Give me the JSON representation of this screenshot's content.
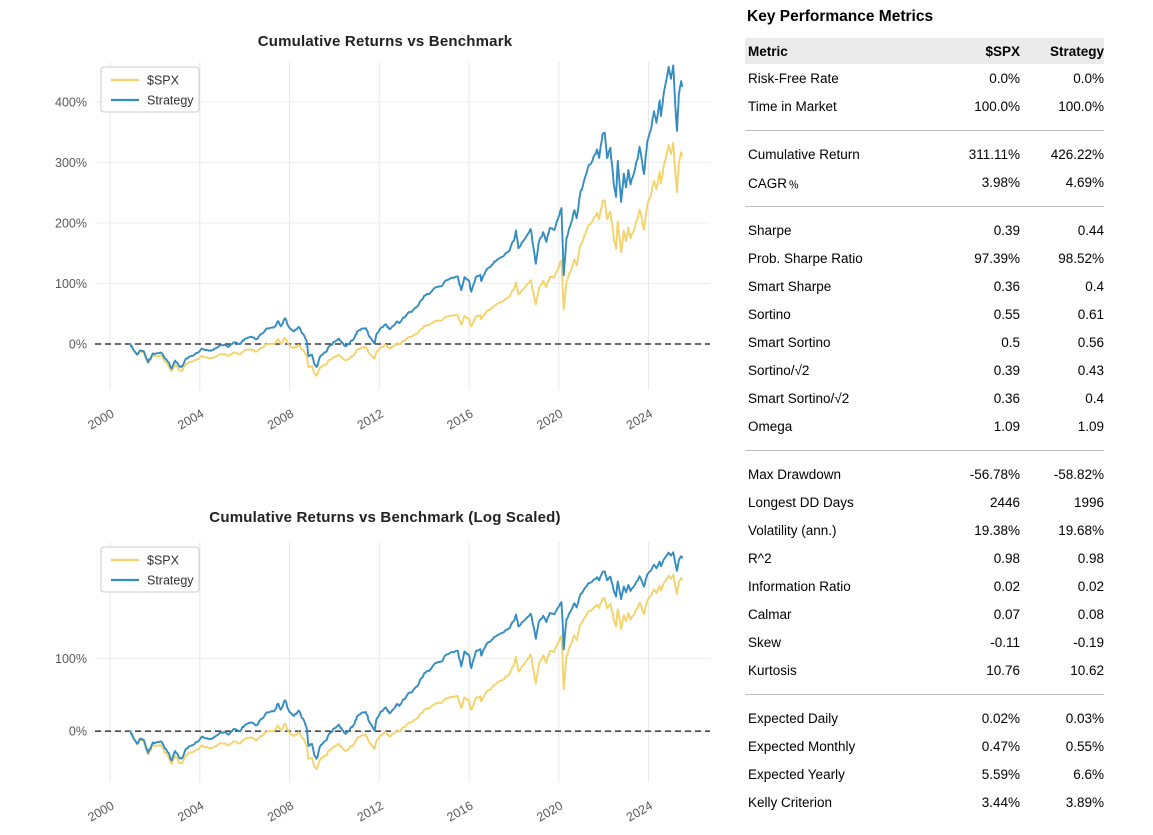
{
  "metrics": {
    "title": "Key Performance Metrics",
    "columns": [
      "Metric",
      "$SPX",
      "Strategy"
    ],
    "sections": [
      {
        "rows": [
          [
            "Risk-Free Rate",
            "0.0%",
            "0.0%"
          ],
          [
            "Time in Market",
            "100.0%",
            "100.0%"
          ]
        ]
      },
      {
        "rows": [
          [
            "Cumulative Return",
            "311.11%",
            "426.22%"
          ],
          [
            "CAGR﹪",
            "3.98%",
            "4.69%"
          ]
        ]
      },
      {
        "rows": [
          [
            "Sharpe",
            "0.39",
            "0.44"
          ],
          [
            "Prob. Sharpe Ratio",
            "97.39%",
            "98.52%"
          ],
          [
            "Smart Sharpe",
            "0.36",
            "0.4"
          ],
          [
            "Sortino",
            "0.55",
            "0.61"
          ],
          [
            "Smart Sortino",
            "0.5",
            "0.56"
          ],
          [
            "Sortino/√2",
            "0.39",
            "0.43"
          ],
          [
            "Smart Sortino/√2",
            "0.36",
            "0.4"
          ],
          [
            "Omega",
            "1.09",
            "1.09"
          ]
        ]
      },
      {
        "rows": [
          [
            "Max Drawdown",
            "-56.78%",
            "-58.82%"
          ],
          [
            "Longest DD Days",
            "2446",
            "1996"
          ],
          [
            "Volatility (ann.)",
            "19.38%",
            "19.68%"
          ],
          [
            "R^2",
            "0.98",
            "0.98"
          ],
          [
            "Information Ratio",
            "0.02",
            "0.02"
          ],
          [
            "Calmar",
            "0.07",
            "0.08"
          ],
          [
            "Skew",
            "-0.11",
            "-0.19"
          ],
          [
            "Kurtosis",
            "10.76",
            "10.62"
          ]
        ]
      },
      {
        "rows": [
          [
            "Expected Daily",
            "0.02%",
            "0.03%"
          ],
          [
            "Expected Monthly",
            "0.47%",
            "0.55%"
          ],
          [
            "Expected Yearly",
            "5.59%",
            "6.6%"
          ],
          [
            "Kelly Criterion",
            "3.44%",
            "3.89%"
          ]
        ]
      }
    ]
  },
  "chart_data": {
    "type": "line",
    "xlim": [
      1999.33,
      2026.74
    ],
    "xticks": [
      2000,
      2004,
      2008,
      2012,
      2016,
      2020,
      2024
    ],
    "zero_line": {
      "value": 0,
      "style": "dashed",
      "color": "#111111"
    },
    "grid_color": "#e8e8e8",
    "legend_position": "upper-left",
    "x_years": [
      2000.9,
      2001.0,
      2001.2,
      2001.35,
      2001.5,
      2001.7,
      2001.9,
      2002.0,
      2002.25,
      2002.5,
      2002.75,
      2002.9,
      2003.1,
      2003.2,
      2003.4,
      2003.6,
      2003.9,
      2004.1,
      2004.4,
      2004.6,
      2004.9,
      2005.1,
      2005.3,
      2005.5,
      2005.8,
      2006.0,
      2006.3,
      2006.5,
      2006.8,
      2007.0,
      2007.3,
      2007.5,
      2007.6,
      2007.8,
      2008.0,
      2008.2,
      2008.4,
      2008.6,
      2008.75,
      2008.85,
      2009.0,
      2009.1,
      2009.2,
      2009.4,
      2009.6,
      2009.8,
      2010.0,
      2010.2,
      2010.35,
      2010.5,
      2010.7,
      2010.9,
      2011.0,
      2011.2,
      2011.4,
      2011.55,
      2011.7,
      2011.78,
      2011.9,
      2012.1,
      2012.3,
      2012.45,
      2012.6,
      2012.8,
      2012.9,
      2013.0,
      2013.25,
      2013.5,
      2013.75,
      2014.0,
      2014.25,
      2014.5,
      2014.75,
      2015.0,
      2015.25,
      2015.5,
      2015.65,
      2015.8,
      2016.0,
      2016.1,
      2016.3,
      2016.5,
      2016.55,
      2016.75,
      2017.0,
      2017.25,
      2017.5,
      2017.75,
      2018.0,
      2018.1,
      2018.2,
      2018.4,
      2018.6,
      2018.75,
      2018.9,
      2018.98,
      2019.1,
      2019.3,
      2019.45,
      2019.6,
      2019.8,
      2020.0,
      2020.12,
      2020.22,
      2020.35,
      2020.5,
      2020.7,
      2020.8,
      2020.95,
      2021.1,
      2021.3,
      2021.5,
      2021.7,
      2021.8,
      2021.95,
      2022.05,
      2022.15,
      2022.3,
      2022.45,
      2022.55,
      2022.63,
      2022.78,
      2022.9,
      2023.0,
      2023.1,
      2023.2,
      2023.4,
      2023.55,
      2023.6,
      2023.8,
      2023.95,
      2024.1,
      2024.25,
      2024.35,
      2024.5,
      2024.55,
      2024.7,
      2024.9,
      2025.0,
      2025.1,
      2025.2,
      2025.27,
      2025.35,
      2025.45,
      2025.5
    ],
    "series": [
      {
        "name": "$SPX",
        "color": "#F5D36B",
        "values": [
          0,
          -7,
          -18.3,
          -12,
          -13.7,
          -32,
          -19,
          -20.4,
          -19.2,
          -30.3,
          -45.3,
          -34,
          -43.7,
          -44.4,
          -32.4,
          -29.6,
          -25.4,
          -19.7,
          -23.7,
          -22.5,
          -16.9,
          -16.9,
          -19.7,
          -14.1,
          -16.9,
          -10.6,
          -8.5,
          -12.7,
          -6,
          0,
          0,
          7.7,
          0.7,
          10.2,
          -2.8,
          -7,
          -1.4,
          -9.9,
          -18.3,
          -38.7,
          -36.6,
          -48.2,
          -52.3,
          -38,
          -33.8,
          -26.1,
          -21.5,
          -17.6,
          -23.2,
          -27.5,
          -22.5,
          -16.9,
          -9.9,
          -6.3,
          -5.3,
          -15.5,
          -21.1,
          -24.3,
          -12,
          -4.9,
          -1.4,
          -7.7,
          -4.2,
          1.4,
          -0.7,
          2.8,
          9.9,
          13.4,
          19,
          29.6,
          31.7,
          38,
          38.7,
          45.1,
          47.2,
          47.9,
          31.7,
          46.5,
          41.5,
          28.9,
          45.1,
          47.9,
          40.8,
          52.8,
          59.2,
          66.2,
          70.4,
          76.8,
          90.1,
          102.1,
          81.7,
          90.1,
          98.6,
          105.6,
          79.6,
          65.5,
          90.1,
          104.2,
          93.7,
          111.3,
          109.9,
          127.5,
          138.5,
          57.5,
          104.2,
          118.3,
          139.4,
          130.3,
          160.6,
          174.6,
          194.4,
          202.8,
          216.9,
          206.3,
          235.9,
          237.7,
          206.3,
          219,
          174.6,
          158,
          202.8,
          151.9,
          187.3,
          170.4,
          192.3,
          174.6,
          194.4,
          213.4,
          222.5,
          189,
          231,
          245.1,
          269.7,
          255.6,
          284.5,
          265,
          297.9,
          328.9,
          314.1,
          332.7,
          280.3,
          250.9,
          297.9,
          316.9,
          311.1
        ]
      },
      {
        "name": "Strategy",
        "color": "#348DC1",
        "values": [
          0,
          -6.5,
          -17.3,
          -10.5,
          -11.8,
          -30,
          -15.8,
          -16.4,
          -14.1,
          -24.9,
          -40.4,
          -27.4,
          -37.3,
          -37.7,
          -23.9,
          -20.2,
          -14.7,
          -7.4,
          -11.3,
          -9.5,
          -2.2,
          -1.7,
          -4.5,
          2.7,
          0.1,
          8.2,
          12.1,
          7.8,
          17.5,
          26,
          27.2,
          37.8,
          29.3,
          42.4,
          26.4,
          20.9,
          28.2,
          17.1,
          6.2,
          -20.3,
          -17.6,
          -32.7,
          -38,
          -19.1,
          -13.3,
          -2.8,
          3.6,
          8.9,
          1.7,
          -3.9,
          2.8,
          10.4,
          19.8,
          24.8,
          26.3,
          12.8,
          5.4,
          1.2,
          17.7,
          27.5,
          32.5,
          24.3,
          29.3,
          37.3,
          34.7,
          39.6,
          50,
          55.6,
          64.1,
          79.6,
          83.6,
          93.5,
          95.4,
          105.5,
          109.5,
          111.5,
          88.9,
          110.6,
          104.3,
          86.5,
          110.4,
          114.3,
          104,
          121.1,
          130.1,
          139.3,
          144.5,
          152.8,
          170.9,
          187.6,
          158.2,
          169.4,
          180.6,
          189.9,
          152.7,
          132.5,
          166.5,
          184.7,
          168.8,
          192.1,
          188.4,
          210.8,
          224.6,
          113.7,
          176.1,
          194.1,
          221.1,
          208.1,
          247.6,
          265.8,
          291.9,
          302.7,
          321.5,
          307.4,
          346.7,
          349.1,
          307.4,
          324.3,
          265.2,
          243.1,
          302.7,
          234.8,
          281.5,
          258.9,
          287.6,
          263.9,
          289.5,
          314,
          326,
          280.9,
          335.6,
          353.1,
          384.7,
          365.5,
          402.5,
          376.7,
          418.9,
          458,
          438.3,
          460.3,
          390.6,
          351.9,
          411.3,
          434.4,
          426.2
        ]
      }
    ],
    "charts": [
      {
        "title": "Cumulative Returns vs Benchmark",
        "scale": "linear",
        "ylim": [
          -76,
          466
        ],
        "yticks": [
          0,
          100,
          200,
          300,
          400
        ],
        "ytick_suffix": "%"
      },
      {
        "title": "Cumulative Returns vs Benchmark (Log Scaled)",
        "scale": "symlog",
        "log_k": 2.2,
        "ulim": [
          -0.7,
          2.6
        ],
        "yticks": [
          0,
          100
        ],
        "ytick_suffix": "%"
      }
    ]
  }
}
